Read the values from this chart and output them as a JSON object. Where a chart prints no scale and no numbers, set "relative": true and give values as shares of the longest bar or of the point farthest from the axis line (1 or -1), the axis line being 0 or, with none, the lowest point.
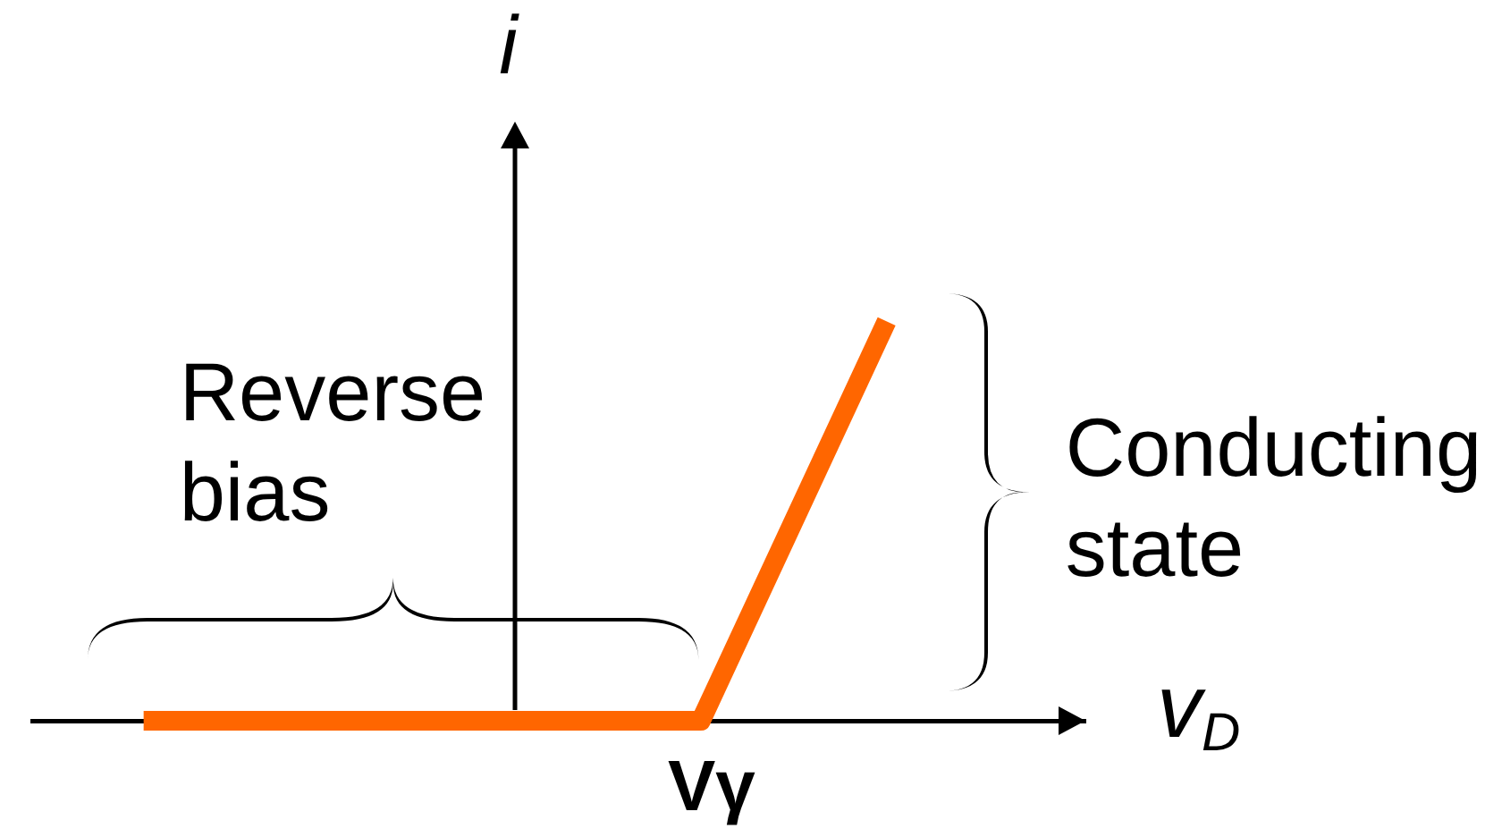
{
  "chart_data": {
    "type": "line",
    "xlabel": "v$_{D}$",
    "ylabel": "i",
    "relative": true,
    "categories": [
      null,
      null,
      null,
      null,
      null
    ],
    "series": [
      {
        "color": "#ff6600",
        "values": [
          0,
          0,
          0,
          0,
          1
        ]
      }
    ],
    "annotations": [
      "Reverse bias",
      "Conducting state",
      "Vγ"
    ]
  }
}
